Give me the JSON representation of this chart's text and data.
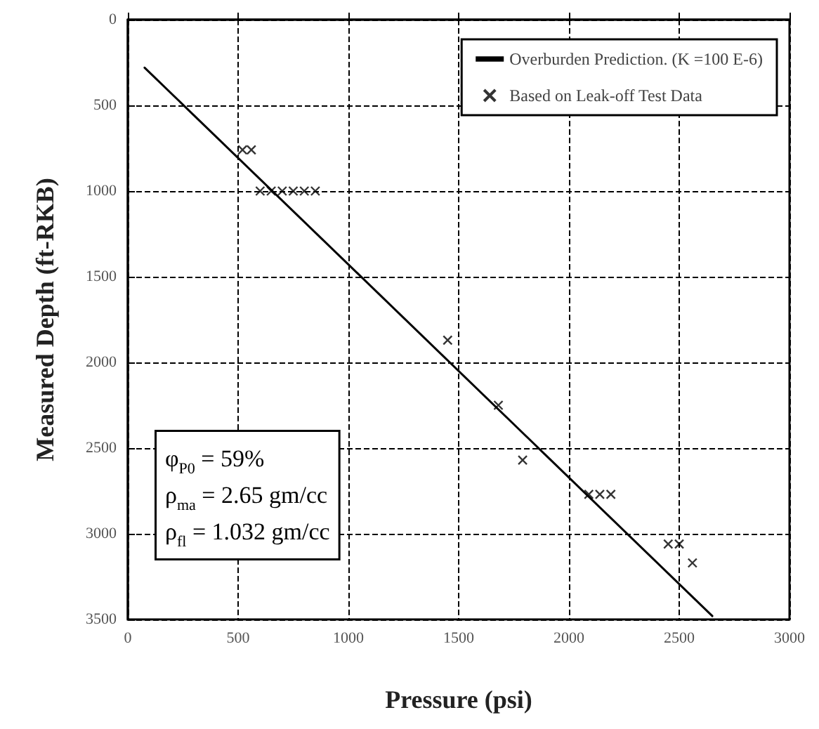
{
  "chart_data": {
    "type": "scatter",
    "xlabel": "Pressure (psi)",
    "ylabel": "Measured Depth (ft-RKB)",
    "xlim": [
      0,
      3000
    ],
    "xticks": [
      0,
      500,
      1000,
      1500,
      2000,
      2500,
      3000
    ],
    "ylim": [
      3500,
      0
    ],
    "yticks": [
      0,
      500,
      1000,
      1500,
      2000,
      2500,
      3000,
      3500
    ],
    "grid": true,
    "legend": "top right",
    "series": [
      {
        "name": "Overburden Prediction. (K =100 E-6)",
        "type": "line",
        "marker": "none",
        "color": "#000000",
        "x": [
          76,
          2650
        ],
        "values": [
          280,
          3480
        ]
      },
      {
        "name": "Based on Leak-off Test Data",
        "marker": "cross",
        "color": "#000000",
        "x": [
          520,
          560,
          600,
          650,
          700,
          750,
          800,
          850,
          1450,
          1680,
          1790,
          2090,
          2140,
          2190,
          2450,
          2500,
          2560
        ],
        "values": [
          760,
          760,
          1000,
          1000,
          1000,
          1000,
          1000,
          1000,
          1870,
          2250,
          2570,
          2770,
          2770,
          2770,
          3060,
          3060,
          3170
        ]
      }
    ],
    "annotations": [
      "φ$_{P0}$ = 59%",
      "ρ$_{ma}$ = 2.65 gm/cc",
      "ρ$_{fl}$ = 1.032 gm/cc"
    ]
  }
}
